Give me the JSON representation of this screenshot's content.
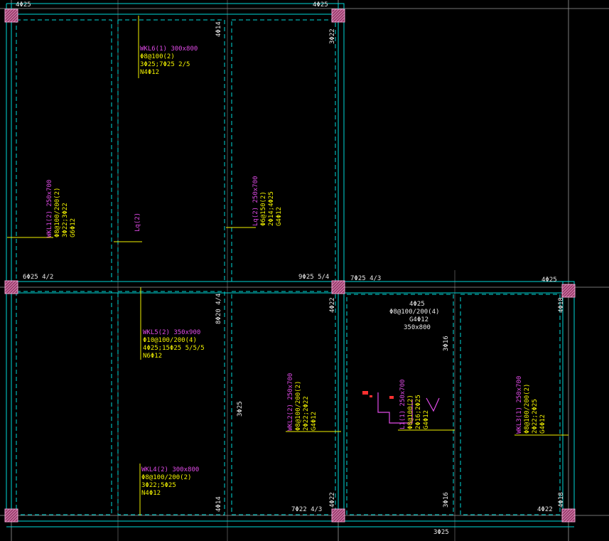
{
  "colors": {
    "background": "#000000",
    "grid_line": "#9a9a9a",
    "beam_edge": "#00d7d7",
    "dim_text": "#e8e8e8",
    "beam_name": "#e14be8",
    "beam_rebar": "#f2f200",
    "leader": "#f2f200",
    "column_fill": "#9c3f6e",
    "column_hatch": "#f0a0d0",
    "marker_red": "#ff3030"
  },
  "rebar_marks": {
    "top_left": "4Φ25",
    "top_mid": "4Φ25",
    "right_col_top": "3Φ22",
    "upper_mid_right": "4Φ14",
    "lower_left_span": "6Φ25 4/2",
    "lower_mid_span": "9Φ25 5/4",
    "right_span_top": "7Φ25 4/3",
    "far_right_top": "4Φ25",
    "mid_vertical_top": "8Φ20 4/4",
    "col_right_lower_a": "4Φ22",
    "right_bay_top": "3Φ16",
    "far_right_vertical": "4Φ18",
    "mid_lower_vertical": "3Φ25",
    "bottom_mid_left": "4Φ14",
    "bottom_mid_span": "7Φ22 4/3",
    "bottom_col_a": "4Φ22",
    "bottom_right_bay": "3Φ16",
    "bottom_far_right_vert": "4Φ18",
    "bottom_far_right": "4Φ22",
    "bottom_axis": "3Φ25"
  },
  "beam_labels": {
    "wkl6": {
      "name": "WKL6(1) 300x800",
      "stirrup": "Φ8@100(2)",
      "main": "3Φ25;7Φ25 2/5",
      "side": "N4Φ12"
    },
    "wkl1": {
      "name": "WKL1(2) 250x700",
      "stirrup": "Φ8@100/200(2)",
      "main": "3Φ22;3Φ22",
      "side": "G6Φ12"
    },
    "lq": {
      "name": "Lq(2)"
    },
    "lq2": {
      "name": "Lq(2) 250x700",
      "stirrup": "Φ6@150(2)",
      "main": "2Φ14;4Φ25",
      "side": "G4Φ12"
    },
    "wkl5": {
      "name": "WKL5(2) 350x900",
      "stirrup": "Φ10@100/200(4)",
      "main": "4Φ25;15Φ25 5/5/5",
      "side": "N6Φ12"
    },
    "right_box": {
      "main": "4Φ25",
      "stirrup": "Φ8@100/200(4)",
      "side": "G4Φ12",
      "size": "350x800"
    },
    "wkl2": {
      "name": "WKL2(2) 250x700",
      "stirrup": "Φ8@100/200(2)",
      "main": "2Φ22;2Φ22",
      "side": "G4Φ12"
    },
    "l1": {
      "name": "L1(1) 250x700",
      "stirrup": "Φ8@100(2)",
      "main": "2Φ16;2Φ25",
      "side": "G4Φ12"
    },
    "wkl3": {
      "name": "WKL3(1) 250x700",
      "stirrup": "Φ8@100/200(2)",
      "main": "2Φ22;2Φ25",
      "side": "G4Φ12"
    },
    "wkl4": {
      "name": "WKL4(2) 300x800",
      "stirrup": "Φ8@100/200(2)",
      "main": "3Φ22;5Φ25",
      "side": "N4Φ12"
    }
  }
}
